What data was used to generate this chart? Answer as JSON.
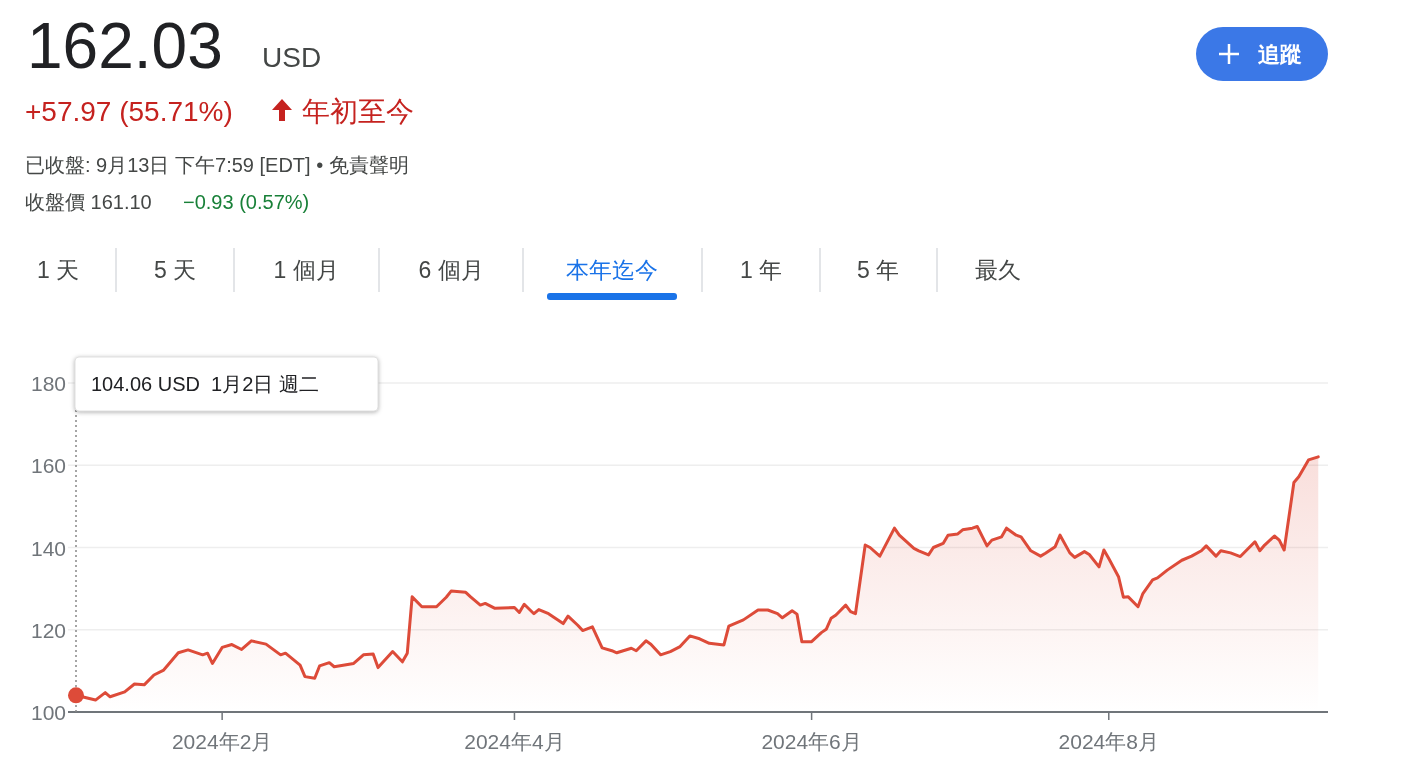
{
  "chart_data": {
    "type": "area",
    "title": "162.03",
    "annotations": [
      "USD",
      "+57.97 (55.71%)",
      "年初至今",
      "已收盤: 9月13日 下午7:59 [EDT] • 免責聲明",
      "收盤價 161.10",
      "−0.93 (0.57%)",
      "1 天",
      "5 天",
      "1 個月",
      "6 個月",
      "本年迄今",
      "1 年",
      "5 年",
      "最久",
      "追蹤",
      "104.06 USD  1月2日 週二"
    ],
    "x": [
      "2024-01-02",
      "2024-01-06",
      "2024-01-08",
      "2024-01-09",
      "2024-01-12",
      "2024-01-14",
      "2024-01-16",
      "2024-01-18",
      "2024-01-20",
      "2024-01-23",
      "2024-01-25",
      "2024-01-28",
      "2024-01-29",
      "2024-01-30",
      "2024-02-01",
      "2024-02-03",
      "2024-02-05",
      "2024-02-07",
      "2024-02-10",
      "2024-02-13",
      "2024-02-14",
      "2024-02-17",
      "2024-02-18",
      "2024-02-20",
      "2024-02-21",
      "2024-02-23",
      "2024-02-24",
      "2024-02-28",
      "2024-03-01",
      "2024-03-03",
      "2024-03-04",
      "2024-03-07",
      "2024-03-09",
      "2024-03-10",
      "2024-03-11",
      "2024-03-13",
      "2024-03-16",
      "2024-03-18",
      "2024-03-19",
      "2024-03-22",
      "2024-03-23",
      "2024-03-25",
      "2024-03-26",
      "2024-03-28",
      "2024-04-01",
      "2024-04-02",
      "2024-04-03",
      "2024-04-05",
      "2024-04-06",
      "2024-04-08",
      "2024-04-11",
      "2024-04-12",
      "2024-04-14",
      "2024-04-15",
      "2024-04-17",
      "2024-04-19",
      "2024-04-21",
      "2024-04-22",
      "2024-04-25",
      "2024-04-26",
      "2024-04-28",
      "2024-04-29",
      "2024-05-01",
      "2024-05-03",
      "2024-05-05",
      "2024-05-07",
      "2024-05-09",
      "2024-05-11",
      "2024-05-14",
      "2024-05-15",
      "2024-05-18",
      "2024-05-21",
      "2024-05-23",
      "2024-05-25",
      "2024-05-26",
      "2024-05-28",
      "2024-05-29",
      "2024-05-30",
      "2024-06-01",
      "2024-06-03",
      "2024-06-04",
      "2024-06-05",
      "2024-06-06",
      "2024-06-08",
      "2024-06-09",
      "2024-06-10",
      "2024-06-12",
      "2024-06-13",
      "2024-06-15",
      "2024-06-18",
      "2024-06-19",
      "2024-06-22",
      "2024-06-23",
      "2024-06-25",
      "2024-06-26",
      "2024-06-28",
      "2024-06-29",
      "2024-07-01",
      "2024-07-02",
      "2024-07-04",
      "2024-07-05",
      "2024-07-07",
      "2024-07-08",
      "2024-07-10",
      "2024-07-11",
      "2024-07-13",
      "2024-07-14",
      "2024-07-16",
      "2024-07-18",
      "2024-07-19",
      "2024-07-21",
      "2024-07-22",
      "2024-07-24",
      "2024-07-25",
      "2024-07-27",
      "2024-07-28",
      "2024-07-30",
      "2024-07-31",
      "2024-08-01",
      "2024-08-03",
      "2024-08-04",
      "2024-08-05",
      "2024-08-07",
      "2024-08-08",
      "2024-08-10",
      "2024-08-11",
      "2024-08-13",
      "2024-08-16",
      "2024-08-18",
      "2024-08-20",
      "2024-08-21",
      "2024-08-23",
      "2024-08-24",
      "2024-08-26",
      "2024-08-28",
      "2024-08-31",
      "2024-09-01",
      "2024-09-02",
      "2024-09-04",
      "2024-09-05",
      "2024-09-06",
      "2024-09-08",
      "2024-09-09",
      "2024-09-11",
      "2024-09-13"
    ],
    "series": [
      {
        "color": "#dd4b39",
        "values": [
          104.06,
          102.9,
          104.7,
          103.7,
          104.9,
          106.8,
          106.6,
          109.0,
          110.2,
          114.4,
          115.1,
          113.9,
          114.3,
          111.8,
          115.7,
          116.4,
          115.2,
          117.3,
          116.5,
          113.9,
          114.3,
          111.4,
          108.6,
          108.2,
          111.2,
          112.0,
          111.0,
          111.8,
          113.9,
          114.1,
          110.8,
          114.7,
          112.2,
          114.3,
          128.0,
          125.6,
          125.6,
          127.9,
          129.4,
          129.1,
          128.0,
          126.0,
          126.4,
          125.2,
          125.4,
          124.2,
          126.2,
          123.9,
          124.9,
          123.9,
          121.5,
          123.3,
          121.1,
          119.8,
          120.7,
          115.6,
          114.9,
          114.4,
          115.5,
          114.9,
          117.3,
          116.5,
          113.9,
          114.7,
          115.9,
          118.5,
          117.8,
          116.7,
          116.3,
          120.9,
          122.4,
          124.8,
          124.8,
          123.9,
          122.9,
          124.6,
          123.8,
          117.1,
          117.1,
          119.3,
          120.1,
          122.8,
          123.6,
          126.0,
          124.4,
          123.9,
          140.6,
          140.0,
          137.9,
          144.7,
          143.0,
          139.8,
          139.2,
          138.2,
          140.0,
          141.0,
          143.0,
          143.3,
          144.3,
          144.7,
          145.1,
          140.4,
          141.8,
          142.6,
          144.7,
          143.0,
          142.6,
          139.2,
          137.9,
          138.6,
          140.2,
          143.0,
          138.7,
          137.6,
          139.0,
          138.3,
          135.3,
          139.4,
          137.3,
          132.9,
          127.9,
          128.0,
          125.6,
          128.8,
          132.1,
          132.6,
          134.5,
          136.9,
          137.9,
          139.2,
          140.4,
          137.9,
          139.2,
          138.7,
          137.8,
          141.4,
          139.2,
          140.6,
          142.8,
          141.8,
          139.4,
          155.8,
          157.2,
          161.3,
          162.03
        ]
      }
    ],
    "xlim": [
      "2024-01-02",
      "2024-09-15"
    ],
    "xticks": [
      {
        "value": "2024-02-01",
        "label": "2024年2月"
      },
      {
        "value": "2024-04-01",
        "label": "2024年4月"
      },
      {
        "value": "2024-06-01",
        "label": "2024年6月"
      },
      {
        "value": "2024-08-01",
        "label": "2024年8月"
      }
    ],
    "ylim": [
      100,
      180
    ],
    "yticks": [
      100,
      120,
      140,
      160,
      180
    ],
    "grid": "y",
    "ref_lines": [
      {
        "axis": "x",
        "value": "2024-01-02",
        "line_style": "dotted",
        "color": "#888888"
      }
    ]
  }
}
